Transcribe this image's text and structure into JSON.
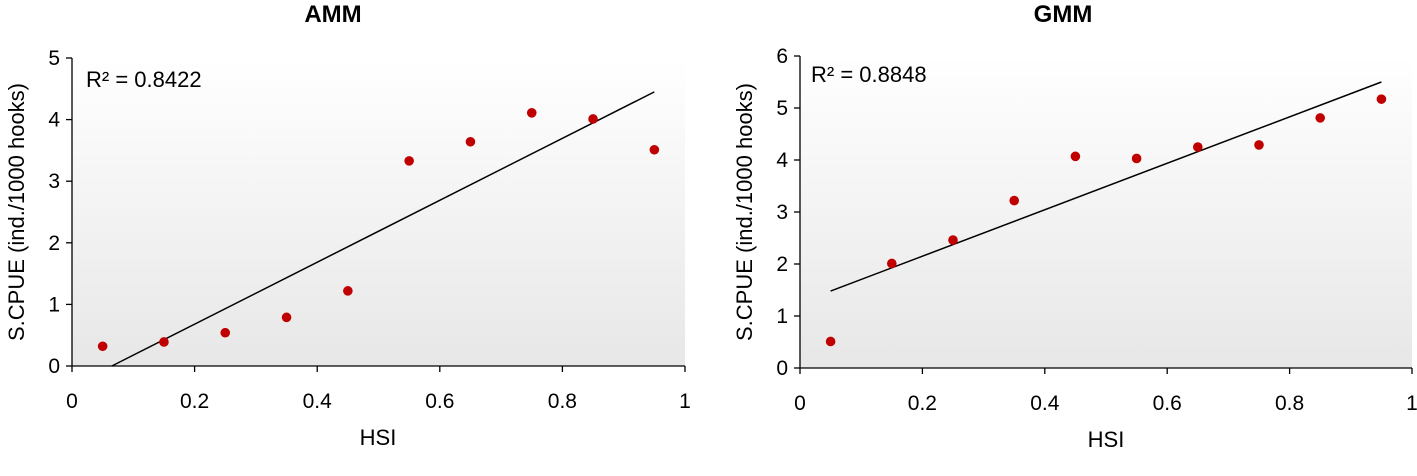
{
  "chart_data": [
    {
      "type": "scatter",
      "title": "AMM",
      "xlabel": "HSI",
      "ylabel": "S.CPUE (ind./1000 hooks)",
      "annotation": "R² = 0.8422",
      "xlim": [
        0,
        1
      ],
      "ylim": [
        0,
        5
      ],
      "xticks": [
        0,
        0.2,
        0.4,
        0.6,
        0.8,
        1
      ],
      "xtick_labels": [
        "0",
        "0.2",
        "0.4",
        "0.6",
        "0.8",
        "1"
      ],
      "yticks": [
        0,
        1,
        2,
        3,
        4,
        5
      ],
      "ytick_labels": [
        "0",
        "1",
        "2",
        "3",
        "4",
        "5"
      ],
      "grid": false,
      "background": "white-to-light-grey gradient",
      "point_color": "#c00000",
      "trendline": {
        "type": "linear",
        "x": [
          0.065,
          0.95
        ],
        "y": [
          0.0,
          4.45
        ]
      },
      "series": [
        {
          "x": [
            0.05,
            0.15,
            0.25,
            0.35,
            0.45,
            0.55,
            0.65,
            0.75,
            0.85,
            0.95
          ],
          "y": [
            0.32,
            0.39,
            0.54,
            0.79,
            1.22,
            3.33,
            3.64,
            4.11,
            4.01,
            3.51
          ]
        }
      ]
    },
    {
      "type": "scatter",
      "title": "GMM",
      "xlabel": "HSI",
      "ylabel": "S.CPUE (ind./1000 hooks)",
      "annotation": "R² = 0.8848",
      "xlim": [
        0,
        1
      ],
      "ylim": [
        0,
        6
      ],
      "xticks": [
        0,
        0.2,
        0.4,
        0.6,
        0.8,
        1
      ],
      "xtick_labels": [
        "0",
        "0.2",
        "0.4",
        "0.6",
        "0.8",
        "1"
      ],
      "yticks": [
        0,
        1,
        2,
        3,
        4,
        5,
        6
      ],
      "ytick_labels": [
        "0",
        "1",
        "2",
        "3",
        "4",
        "5",
        "6"
      ],
      "grid": false,
      "background": "white-to-light-grey gradient",
      "point_color": "#c00000",
      "trendline": {
        "type": "linear",
        "x": [
          0.05,
          0.95
        ],
        "y": [
          1.48,
          5.5
        ]
      },
      "series": [
        {
          "x": [
            0.05,
            0.15,
            0.25,
            0.35,
            0.45,
            0.55,
            0.65,
            0.75,
            0.85,
            0.95
          ],
          "y": [
            0.51,
            2.01,
            2.46,
            3.22,
            4.07,
            4.03,
            4.25,
            4.29,
            4.81,
            5.17
          ]
        }
      ]
    }
  ]
}
